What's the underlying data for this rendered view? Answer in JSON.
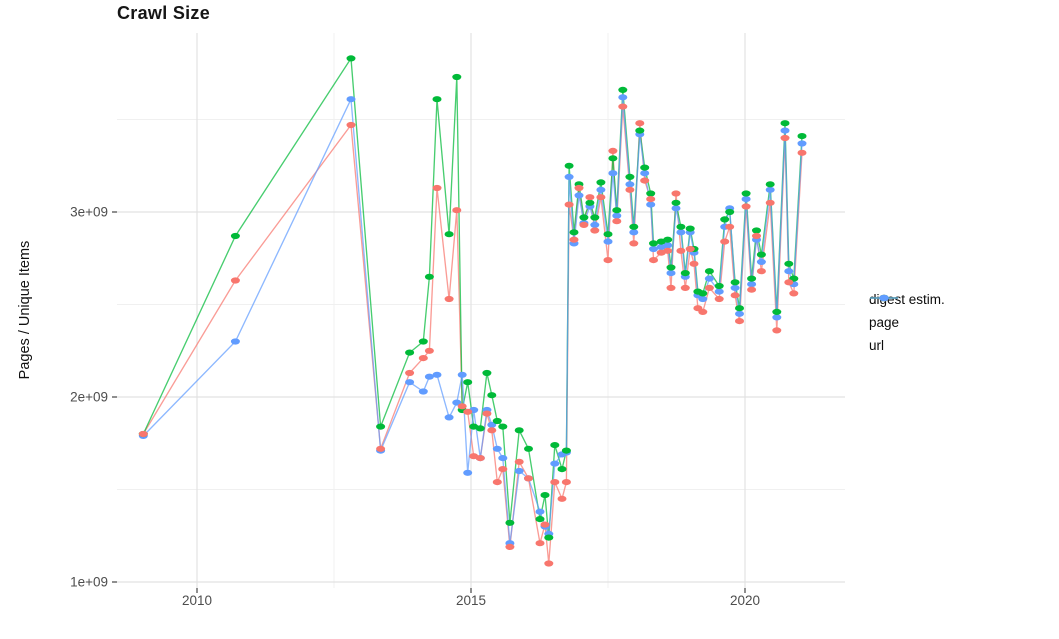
{
  "chart_data": {
    "type": "line",
    "title": "Crawl Size",
    "ylabel": "Pages / Unique Items",
    "xlabel": "",
    "unit": "billions (1e9)",
    "grid": true,
    "legend_position": "right-center",
    "x_axis": {
      "ticks": [
        2010,
        2015,
        2020
      ],
      "tick_labels": [
        "2010",
        "2015",
        "2020"
      ],
      "minor_gridlines": [
        2012.5,
        2017.5
      ],
      "range": [
        2008.55,
        2021.82
      ]
    },
    "y_axis": {
      "ticks": [
        1,
        2,
        3
      ],
      "tick_labels": [
        "1e+09",
        "2e+09",
        "3e+09"
      ],
      "minor_gridlines": [
        1.5,
        2.5,
        3.5
      ],
      "range": [
        0.97,
        4.0
      ]
    },
    "x": [
      2009.02,
      2010.7,
      2012.81,
      2013.35,
      2013.88,
      2014.13,
      2014.24,
      2014.38,
      2014.6,
      2014.74,
      2014.84,
      2014.94,
      2015.05,
      2015.17,
      2015.29,
      2015.38,
      2015.48,
      2015.58,
      2015.71,
      2015.88,
      2016.05,
      2016.26,
      2016.35,
      2016.42,
      2016.53,
      2016.66,
      2016.74,
      2016.79,
      2016.88,
      2016.97,
      2017.06,
      2017.17,
      2017.26,
      2017.37,
      2017.5,
      2017.59,
      2017.66,
      2017.77,
      2017.9,
      2017.97,
      2018.08,
      2018.17,
      2018.28,
      2018.33,
      2018.47,
      2018.59,
      2018.65,
      2018.74,
      2018.83,
      2018.91,
      2019.0,
      2019.07,
      2019.14,
      2019.23,
      2019.35,
      2019.53,
      2019.63,
      2019.72,
      2019.82,
      2019.9,
      2020.02,
      2020.12,
      2020.21,
      2020.3,
      2020.46,
      2020.58,
      2020.73,
      2020.8,
      2020.89,
      2021.04
    ],
    "series": [
      {
        "name": "digest estim.",
        "color": "#F8766D",
        "values": [
          1.8,
          2.63,
          3.47,
          1.72,
          2.13,
          2.21,
          2.25,
          3.13,
          2.53,
          3.01,
          1.95,
          1.92,
          1.68,
          1.67,
          1.91,
          1.82,
          1.54,
          1.61,
          1.19,
          1.65,
          1.56,
          1.21,
          1.31,
          1.1,
          1.54,
          1.45,
          1.54,
          3.04,
          2.85,
          3.13,
          2.93,
          3.08,
          2.9,
          3.08,
          2.74,
          3.33,
          2.95,
          3.57,
          3.12,
          2.83,
          3.48,
          3.17,
          3.07,
          2.74,
          2.78,
          2.79,
          2.59,
          3.1,
          2.79,
          2.59,
          2.8,
          2.72,
          2.48,
          2.46,
          2.59,
          2.53,
          2.84,
          2.92,
          2.55,
          2.41,
          3.03,
          2.58,
          2.87,
          2.68,
          3.05,
          2.36,
          3.4,
          2.62,
          2.56,
          3.32
        ]
      },
      {
        "name": "page",
        "color": "#00BA38",
        "values": [
          1.8,
          2.87,
          3.83,
          1.84,
          2.24,
          2.3,
          2.65,
          3.61,
          2.88,
          3.73,
          1.93,
          2.08,
          1.84,
          1.83,
          2.13,
          2.01,
          1.87,
          1.84,
          1.32,
          1.82,
          1.72,
          1.34,
          1.47,
          1.24,
          1.74,
          1.61,
          1.71,
          3.25,
          2.89,
          3.15,
          2.97,
          3.05,
          2.97,
          3.16,
          2.88,
          3.29,
          3.01,
          3.66,
          3.19,
          2.92,
          3.44,
          3.24,
          3.1,
          2.83,
          2.84,
          2.85,
          2.7,
          3.05,
          2.92,
          2.67,
          2.91,
          2.8,
          2.57,
          2.56,
          2.68,
          2.6,
          2.96,
          3.0,
          2.62,
          2.48,
          3.1,
          2.64,
          2.9,
          2.77,
          3.15,
          2.46,
          3.48,
          2.72,
          2.64,
          3.41
        ]
      },
      {
        "name": "url",
        "color": "#619CFF",
        "values": [
          1.79,
          2.3,
          3.61,
          1.71,
          2.08,
          2.03,
          2.11,
          2.12,
          1.89,
          1.97,
          2.12,
          1.59,
          1.93,
          1.67,
          1.93,
          1.85,
          1.72,
          1.67,
          1.21,
          1.6,
          1.56,
          1.38,
          1.3,
          1.26,
          1.64,
          1.69,
          1.7,
          3.19,
          2.83,
          3.09,
          2.94,
          3.03,
          2.93,
          3.12,
          2.84,
          3.21,
          2.98,
          3.62,
          3.15,
          2.89,
          3.42,
          3.21,
          3.04,
          2.8,
          2.81,
          2.82,
          2.67,
          3.02,
          2.89,
          2.65,
          2.89,
          2.78,
          2.55,
          2.53,
          2.64,
          2.57,
          2.92,
          3.02,
          2.59,
          2.45,
          3.07,
          2.61,
          2.85,
          2.73,
          3.12,
          2.43,
          3.44,
          2.68,
          2.61,
          3.37
        ]
      }
    ]
  }
}
